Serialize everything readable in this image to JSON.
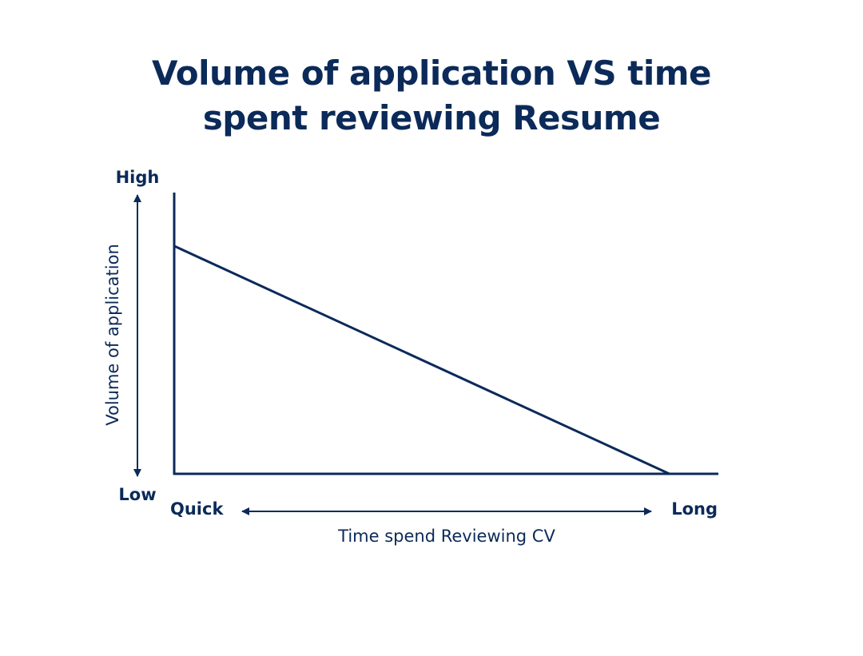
{
  "colors": {
    "primary": "#0b2a59",
    "background": "#ffffff"
  },
  "chart_data": {
    "type": "line",
    "title": "Volume of application VS time spent reviewing Resume",
    "title_lines": [
      "Volume of application VS time",
      "spent reviewing Resume"
    ],
    "xlabel": "Time spend Reviewing CV",
    "ylabel": "Volume of application",
    "x_low_label": "Quick",
    "x_high_label": "Long",
    "y_low_label": "Low",
    "y_high_label": "High",
    "xlim": [
      0,
      1
    ],
    "ylim": [
      0,
      1
    ],
    "grid": false,
    "series": [
      {
        "points": [
          {
            "x": 0,
            "y": 0.81
          },
          {
            "x": 0.91,
            "y": 0
          }
        ]
      }
    ]
  }
}
